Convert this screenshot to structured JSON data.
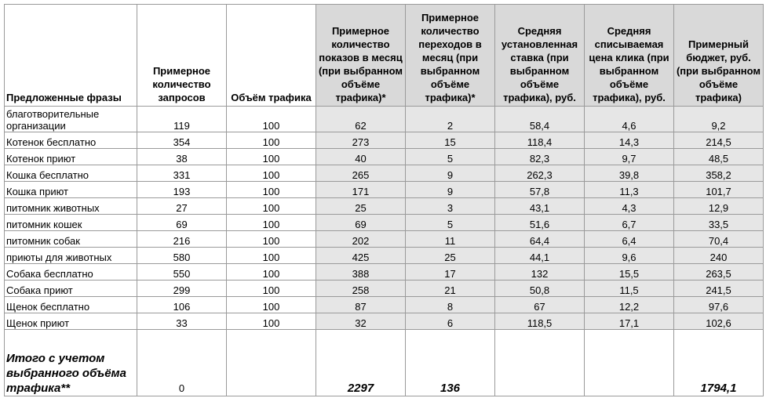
{
  "table": {
    "header": [
      "Предложенные фразы",
      "Примерное количество запросов",
      "Объём трафика",
      "Примерное количество показов в месяц (при выбранном объёме трафика)*",
      "Примерное количество переходов в месяц (при выбранном объёме трафика)*",
      "Средняя установленная ставка (при выбранном объёме трафика), руб.",
      "Средняя списываемая цена клика (при выбранном объёме трафика), руб.",
      "Примерный бюджет, руб. (при выбранном объёме трафика)"
    ],
    "rows": [
      [
        "благотворительные организации",
        "119",
        "100",
        "62",
        "2",
        "58,4",
        "4,6",
        "9,2"
      ],
      [
        "Котенок бесплатно",
        "354",
        "100",
        "273",
        "15",
        "118,4",
        "14,3",
        "214,5"
      ],
      [
        "Котенок приют",
        "38",
        "100",
        "40",
        "5",
        "82,3",
        "9,7",
        "48,5"
      ],
      [
        "Кошка бесплатно",
        "331",
        "100",
        "265",
        "9",
        "262,3",
        "39,8",
        "358,2"
      ],
      [
        "Кошка приют",
        "193",
        "100",
        "171",
        "9",
        "57,8",
        "11,3",
        "101,7"
      ],
      [
        "питомник животных",
        "27",
        "100",
        "25",
        "3",
        "43,1",
        "4,3",
        "12,9"
      ],
      [
        "питомник кошек",
        "69",
        "100",
        "69",
        "5",
        "51,6",
        "6,7",
        "33,5"
      ],
      [
        "питомник собак",
        "216",
        "100",
        "202",
        "11",
        "64,4",
        "6,4",
        "70,4"
      ],
      [
        "приюты для животных",
        "580",
        "100",
        "425",
        "25",
        "44,1",
        "9,6",
        "240"
      ],
      [
        "Собака бесплатно",
        "550",
        "100",
        "388",
        "17",
        "132",
        "15,5",
        "263,5"
      ],
      [
        "Собака приют",
        "299",
        "100",
        "258",
        "21",
        "50,8",
        "11,5",
        "241,5"
      ],
      [
        "Щенок бесплатно",
        "106",
        "100",
        "87",
        "8",
        "67",
        "12,2",
        "97,6"
      ],
      [
        "Щенок приют",
        "33",
        "100",
        "32",
        "6",
        "118,5",
        "17,1",
        "102,6"
      ]
    ],
    "total": {
      "label": "Итого с учетом выбранного объёма трафика**",
      "queries": "0",
      "impressions": "2297",
      "clicks": "136",
      "budget": "1794,1"
    }
  }
}
